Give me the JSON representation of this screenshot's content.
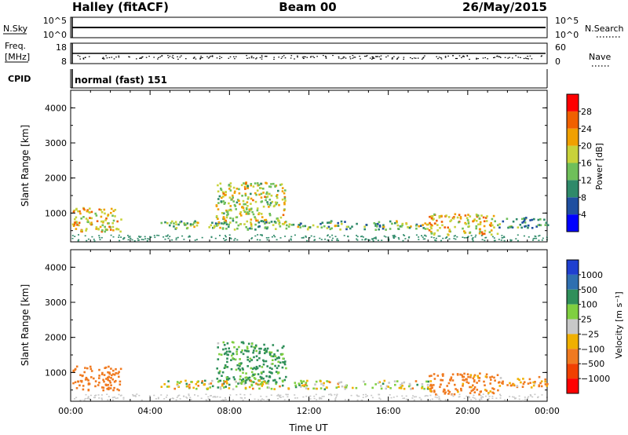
{
  "header": {
    "left_title": "Halley (fitACF)",
    "center_title": "Beam 00",
    "right_title": "26/May/2015"
  },
  "sky_panel": {
    "left_label": "N.Sky",
    "right_label": "N.Search",
    "y_ticks_left": [
      "10^5",
      "10^0"
    ],
    "y_ticks_right": [
      "10^5",
      "10^0"
    ]
  },
  "freq_panel": {
    "left_label_line1": "Freq.",
    "left_label_line2": "[MHz]",
    "right_label": "Nave",
    "y_ticks_left": [
      "18",
      "8"
    ],
    "y_ticks_right": [
      "60",
      "0"
    ]
  },
  "cpid_panel": {
    "left_label": "CPID",
    "program": "normal (fast) 151"
  },
  "colors": {
    "power_scale": [
      "#0000ff",
      "#1f4fa0",
      "#2f8a6a",
      "#6fbf5a",
      "#c8d23a",
      "#f0a000",
      "#f06000",
      "#ff0000"
    ],
    "velocity_scale": [
      "#ff0000",
      "#f04000",
      "#f07a20",
      "#f0b000",
      "#c8c8c8",
      "#7fcf40",
      "#2f8f5a",
      "#2f6fb0",
      "#1f3fd0"
    ]
  },
  "chart_data": [
    {
      "type": "heatmap",
      "title": "",
      "xlabel": "",
      "ylabel": "Slant Range [km]",
      "xlim": [
        0,
        24
      ],
      "ylim": [
        180,
        4500
      ],
      "x_ticks": [
        0,
        4,
        8,
        12,
        16,
        20,
        24
      ],
      "y_ticks": [
        1000,
        2000,
        3000,
        4000
      ],
      "colorbar": {
        "label": "Power [dB]",
        "range": [
          0,
          32
        ],
        "ticks": [
          4,
          8,
          12,
          16,
          20,
          24,
          28
        ]
      },
      "echo_regions": [
        {
          "t_start": 0.0,
          "t_end": 2.5,
          "range_start": 500,
          "range_end": 1200,
          "value": 20
        },
        {
          "t_start": 7.3,
          "t_end": 10.8,
          "range_start": 700,
          "range_end": 1900,
          "value": 18
        },
        {
          "t_start": 4.5,
          "t_end": 18.0,
          "range_start": 550,
          "range_end": 800,
          "value": 14
        },
        {
          "t_start": 18.0,
          "t_end": 21.5,
          "range_start": 400,
          "range_end": 1000,
          "value": 20
        },
        {
          "t_start": 21.5,
          "t_end": 24.0,
          "range_start": 600,
          "range_end": 900,
          "value": 12
        }
      ]
    },
    {
      "type": "heatmap",
      "title": "",
      "xlabel": "Time UT",
      "ylabel": "Slant Range [km]",
      "xlim": [
        0,
        24
      ],
      "ylim": [
        180,
        4500
      ],
      "x_ticks": [
        "00:00",
        "04:00",
        "08:00",
        "12:00",
        "16:00",
        "20:00",
        "00:00"
      ],
      "y_ticks": [
        1000,
        2000,
        3000,
        4000
      ],
      "colorbar": {
        "label": "Velocity [m s⁻¹]",
        "tick_labels": [
          "1000",
          "500",
          "100",
          "25",
          "−25",
          "−100",
          "−500",
          "−1000"
        ]
      },
      "echo_regions": [
        {
          "t_start": 0.0,
          "t_end": 2.5,
          "range_start": 500,
          "range_end": 1200,
          "value": -300
        },
        {
          "t_start": 7.3,
          "t_end": 10.8,
          "range_start": 700,
          "range_end": 1900,
          "value": 150
        },
        {
          "t_start": 4.5,
          "t_end": 18.0,
          "range_start": 550,
          "range_end": 800,
          "value": 0
        },
        {
          "t_start": 18.0,
          "t_end": 21.5,
          "range_start": 400,
          "range_end": 1000,
          "value": -200
        },
        {
          "t_start": 21.5,
          "t_end": 24.0,
          "range_start": 600,
          "range_end": 900,
          "value": -120
        }
      ]
    }
  ]
}
